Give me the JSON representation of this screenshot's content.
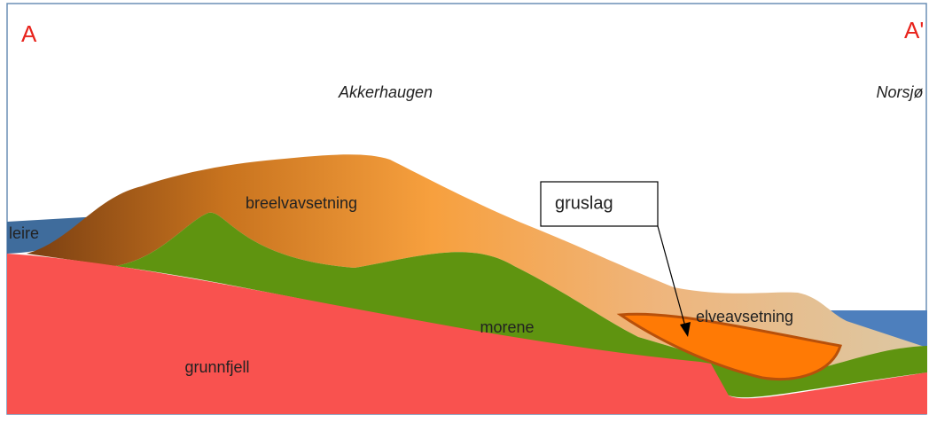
{
  "section_ends": {
    "start": "A",
    "end": "A'"
  },
  "places": [
    "Akkerhaugen",
    "Norsjø"
  ],
  "layers": [
    "leire",
    "breelvavsetning",
    "morene",
    "elveavsetning",
    "grunnfjell"
  ],
  "callout": "gruslag"
}
